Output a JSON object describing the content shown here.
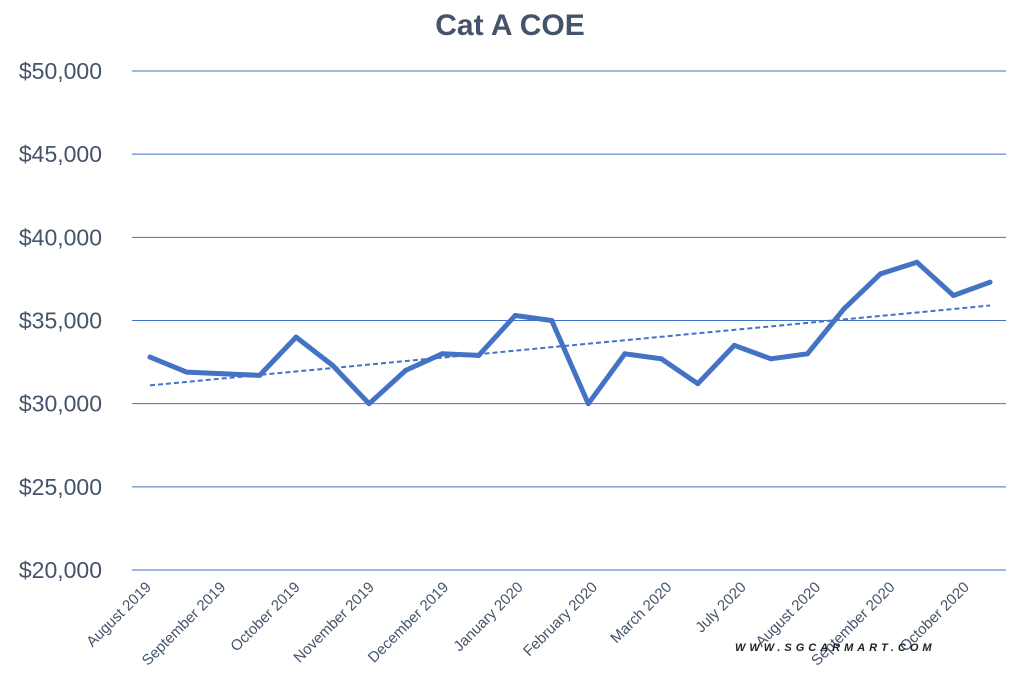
{
  "chart_data": {
    "type": "line",
    "title": "Cat A COE",
    "xlabel": "",
    "ylabel": "",
    "ylim": [
      20000,
      50000
    ],
    "ytick_values": [
      20000,
      25000,
      30000,
      35000,
      40000,
      45000,
      50000
    ],
    "ytick_labels": [
      "$20,000",
      "$25,000",
      "$30,000",
      "$35,000",
      "$40,000",
      "$45,000",
      "$50,000"
    ],
    "xtick_labels": [
      "August 2019",
      "September 2019",
      "October 2019",
      "November 2019",
      "December 2019",
      "January 2020",
      "February 2020",
      "March 2020",
      "July 2020",
      "August 2020",
      "September 2020",
      "October 2020"
    ],
    "grid": true,
    "legend": "none",
    "series": [
      {
        "values": [
          32800,
          31900,
          31800,
          31700,
          34000,
          32300,
          30000,
          32000,
          33000,
          32900,
          35300,
          35000,
          30000,
          33000,
          32700,
          31200,
          33500,
          32700,
          33000,
          35700,
          37800,
          38500,
          36500,
          37300
        ],
        "color": "#4472c4"
      }
    ],
    "trendline": {
      "type": "linear",
      "start": 31100,
      "end": 35900,
      "color": "#4472c4",
      "style": "dashed"
    }
  },
  "watermark": "WWW.SGCARMART.COM",
  "colors": {
    "gridline": "#4472c4",
    "text": "#44546a"
  }
}
